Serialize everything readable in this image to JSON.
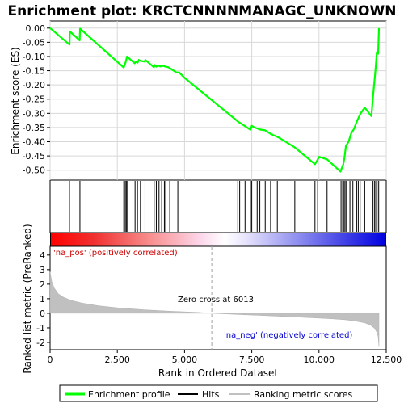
{
  "chart_data": {
    "type": "line",
    "title": "Enrichment plot: KRCTCNNNNMANAGC_UNKNOWN",
    "top_panel": {
      "ylabel": "Enrichment score (ES)",
      "ylim": [
        -0.535,
        0.025
      ],
      "yticks": [
        0.0,
        -0.05,
        -0.1,
        -0.15,
        -0.2,
        -0.25,
        -0.3,
        -0.35,
        -0.4,
        -0.45,
        -0.5
      ],
      "ytick_labels": [
        "0.00",
        "-0.05",
        "-0.10",
        "-0.15",
        "-0.20",
        "-0.25",
        "-0.30",
        "-0.35",
        "-0.40",
        "-0.45",
        "-0.50"
      ],
      "series": [
        {
          "name": "Enrichment profile",
          "color": "#00ff00",
          "x": [
            0,
            720,
            735,
            1100,
            1115,
            2740,
            2760,
            2800,
            2830,
            2860,
            3150,
            3180,
            3250,
            3300,
            3360,
            3520,
            3540,
            3860,
            3880,
            3950,
            4000,
            4100,
            4200,
            4300,
            4400,
            4700,
            4800,
            5000,
            7000,
            7050,
            7250,
            7450,
            7500,
            7600,
            7700,
            7800,
            8000,
            8200,
            8500,
            9100,
            9850,
            9950,
            10000,
            10300,
            10800,
            10900,
            10950,
            11000,
            11100,
            11200,
            11300,
            11400,
            11500,
            11550,
            11700,
            11950,
            12000,
            12050,
            12100,
            12150,
            12200,
            12230
          ],
          "values": [
            0.0,
            -0.058,
            -0.012,
            -0.043,
            -0.002,
            -0.139,
            -0.132,
            -0.123,
            -0.112,
            -0.1,
            -0.124,
            -0.118,
            -0.122,
            -0.112,
            -0.115,
            -0.118,
            -0.112,
            -0.138,
            -0.13,
            -0.136,
            -0.131,
            -0.135,
            -0.133,
            -0.136,
            -0.138,
            -0.156,
            -0.156,
            -0.175,
            -0.33,
            -0.333,
            -0.345,
            -0.358,
            -0.344,
            -0.35,
            -0.353,
            -0.357,
            -0.36,
            -0.372,
            -0.385,
            -0.42,
            -0.479,
            -0.463,
            -0.453,
            -0.462,
            -0.505,
            -0.48,
            -0.455,
            -0.415,
            -0.4,
            -0.37,
            -0.355,
            -0.33,
            -0.31,
            -0.3,
            -0.28,
            -0.31,
            -0.25,
            -0.2,
            -0.148,
            -0.085,
            -0.09,
            0.0
          ]
        }
      ]
    },
    "hits": {
      "name": "Hits",
      "positions": [
        720,
        1110,
        2740,
        2790,
        2830,
        2860,
        3160,
        3250,
        3360,
        3530,
        3870,
        3950,
        4050,
        4150,
        4250,
        4300,
        4450,
        4750,
        6980,
        7050,
        7250,
        7450,
        7500,
        7700,
        7800,
        8000,
        8200,
        8450,
        9100,
        9850,
        9950,
        10300,
        10820,
        10880,
        10930,
        10970,
        11020,
        11150,
        11260,
        11400,
        11460,
        11530,
        11700,
        12000,
        12060,
        12110,
        12160,
        12220
      ]
    },
    "bottom_panel": {
      "ylabel": "Ranked list metric (PreRanked)",
      "xlabel": "Rank in Ordered Dataset",
      "ylim": [
        -2.5,
        4.6
      ],
      "yticks": [
        4,
        3,
        2,
        1,
        0,
        -1,
        -2
      ],
      "ytick_labels": [
        "4",
        "3",
        "2",
        "1",
        "0",
        "-1",
        "-2"
      ],
      "series": [
        {
          "name": "Ranking metric scores",
          "color": "#c0c0c0",
          "x": [
            0,
            60,
            150,
            300,
            500,
            800,
            1200,
            1800,
            2500,
            3500,
            4500,
            5500,
            6013,
            7000,
            8000,
            9000,
            10000,
            10500,
            11000,
            11400,
            11700,
            11900,
            12050,
            12150,
            12200,
            12230
          ],
          "values": [
            2.85,
            2.2,
            1.75,
            1.35,
            1.1,
            0.88,
            0.7,
            0.52,
            0.38,
            0.24,
            0.14,
            0.06,
            0.0,
            -0.08,
            -0.16,
            -0.24,
            -0.33,
            -0.38,
            -0.45,
            -0.55,
            -0.66,
            -0.8,
            -1.0,
            -1.3,
            -1.6,
            -2.3
          ]
        }
      ],
      "zero_cross_label": "Zero cross at 6013",
      "zero_cross": 6013,
      "pos_label": "'na_pos' (positively correlated)",
      "neg_label": "'na_neg' (negatively correlated)"
    },
    "xlim": [
      0,
      12500
    ],
    "xticks": [
      0,
      2500,
      5000,
      7500,
      10000,
      12500
    ],
    "xtick_labels": [
      "0",
      "2,500",
      "5,000",
      "7,500",
      "10,000",
      "12,500"
    ],
    "legend": {
      "placement": "bottom-center",
      "entries": [
        {
          "label": "Enrichment profile",
          "color": "#00ff00"
        },
        {
          "label": "Hits",
          "color": "#000000"
        },
        {
          "label": "Ranking metric scores",
          "color": "#c0c0c0"
        }
      ]
    }
  }
}
